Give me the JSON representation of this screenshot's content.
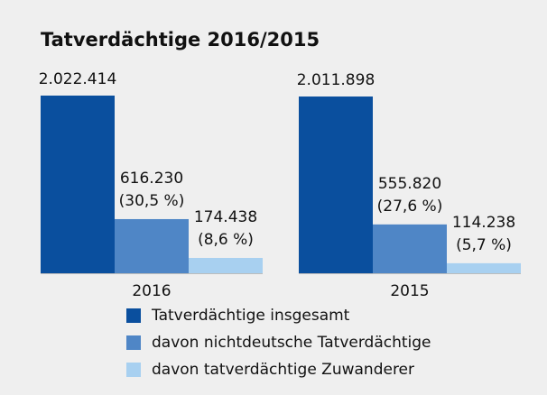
{
  "chart_data": {
    "type": "bar",
    "title": "Tatverdächtige 2016/2015",
    "categories": [
      "2016",
      "2015"
    ],
    "series": [
      {
        "name": "Tatverdächtige insgesamt",
        "color": "#0a4f9e",
        "values": [
          2022414,
          2011898
        ],
        "value_labels": [
          "2.022.414",
          "2.011.898"
        ]
      },
      {
        "name": "davon nichtdeutsche Tatverdächtige",
        "color": "#4f86c6",
        "values": [
          616230,
          555820
        ],
        "value_labels": [
          "616.230",
          "555.820"
        ],
        "share_labels": [
          "(30,5 %)",
          "(27,6 %)"
        ]
      },
      {
        "name": "davon tatverdächtige Zuwanderer",
        "color": "#a8d0f0",
        "values": [
          174438,
          114238
        ],
        "value_labels": [
          "174.438",
          "114.238"
        ],
        "share_labels": [
          "(8,6 %)",
          "(5,7 %)"
        ]
      }
    ]
  }
}
